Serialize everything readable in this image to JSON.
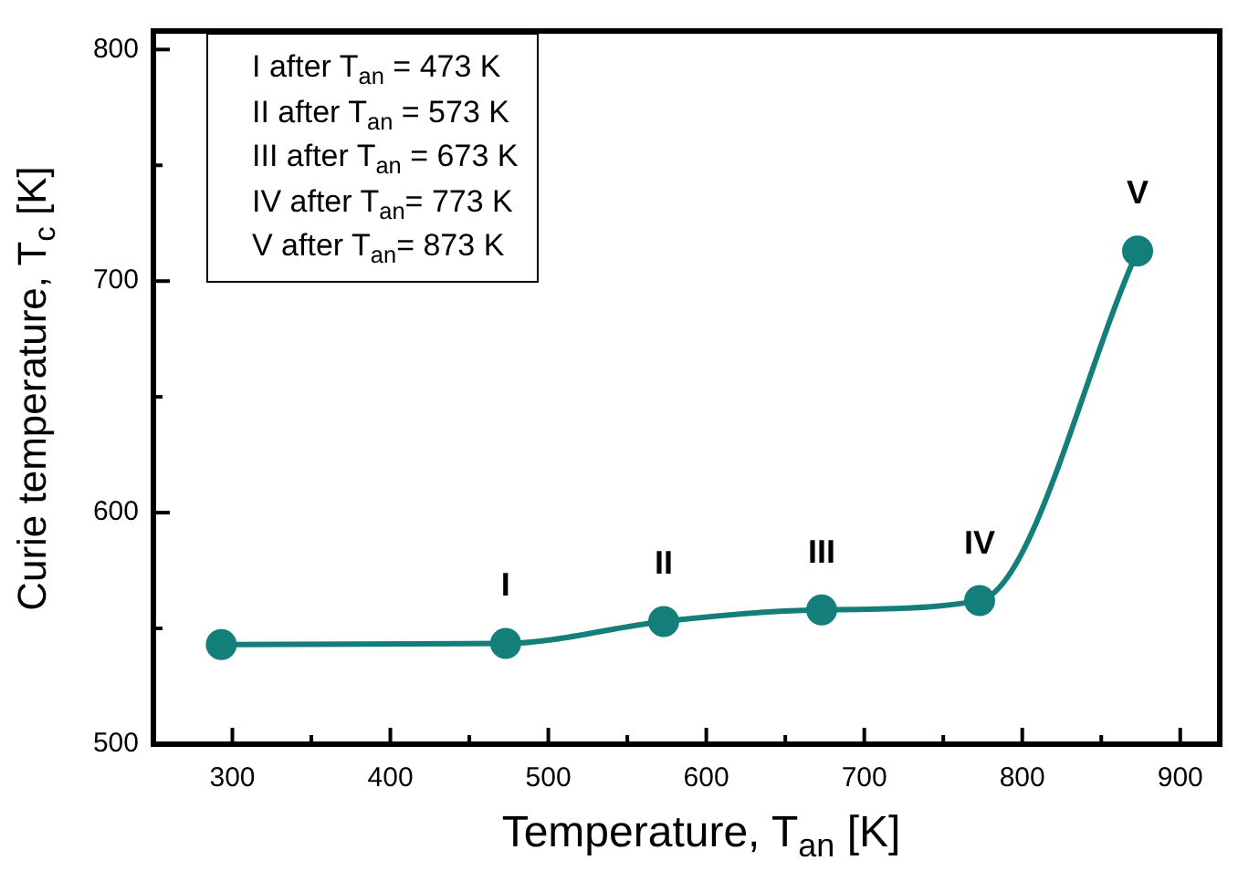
{
  "chart_data": {
    "type": "line",
    "xlabel": "Temperature, T$_{an}$ [K]",
    "ylabel": "Curie temperature, T$_{c}$ [K]",
    "x": [
      293,
      473,
      573,
      673,
      773,
      873
    ],
    "series": [
      {
        "color": "#147f7a",
        "values": [
          543,
          543.5,
          553,
          558,
          562,
          713
        ]
      }
    ],
    "marker": "circle",
    "line_style": "solid",
    "grid": false,
    "legend": false,
    "xlim": [
      250,
      925
    ],
    "xticks": [
      300,
      {
        "value": 350,
        "label": null
      },
      400,
      {
        "value": 450,
        "label": null
      },
      500,
      {
        "value": 550,
        "label": null
      },
      600,
      {
        "value": 650,
        "label": null
      },
      700,
      {
        "value": 750,
        "label": null
      },
      800,
      {
        "value": 850,
        "label": null
      },
      900
    ],
    "ylim": [
      500,
      808
    ],
    "yticks": [
      500,
      {
        "value": 550,
        "label": null
      },
      600,
      {
        "value": 650,
        "label": null
      },
      700,
      {
        "value": 750,
        "label": null
      },
      800
    ],
    "annotations": [
      "I   after T$_{an}$ = 473 K",
      "II  after T$_{an}$ = 573 K",
      "III after T$_{an}$ = 673 K",
      "IV after T$_{an}$= 773 K",
      "V  after T$_{an}$= 873 K",
      {
        "text": "I",
        "x": 473,
        "y": 543.5
      },
      {
        "text": "II",
        "x": 573,
        "y": 553
      },
      {
        "text": "III",
        "x": 673,
        "y": 558
      },
      {
        "text": "IV",
        "x": 773,
        "y": 562
      },
      {
        "text": "V",
        "x": 873,
        "y": 713
      }
    ]
  }
}
